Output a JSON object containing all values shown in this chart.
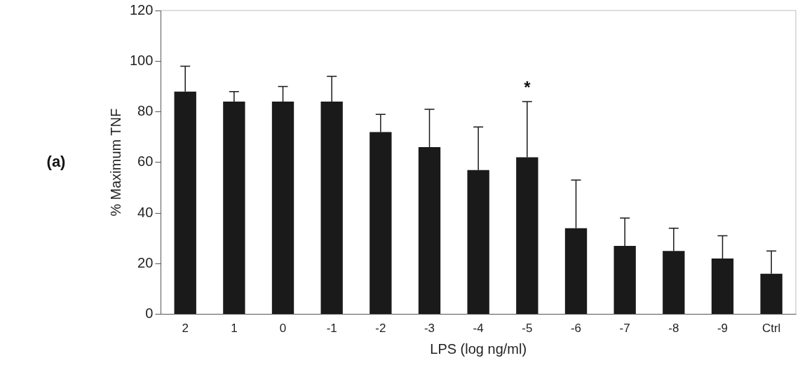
{
  "chart_data": {
    "type": "bar",
    "xlabel": "LPS (log ng/ml)",
    "ylabel": "% Maximum TNF",
    "categories": [
      "2",
      "1",
      "0",
      "-1",
      "-2",
      "-3",
      "-4",
      "-5",
      "-6",
      "-7",
      "-8",
      "-9",
      "Ctrl"
    ],
    "values": [
      88,
      84,
      84,
      84,
      72,
      66,
      57,
      62,
      34,
      27,
      25,
      22,
      16
    ],
    "errors": [
      [
        88,
        98
      ],
      [
        84,
        88
      ],
      [
        84,
        90
      ],
      [
        84,
        94
      ],
      [
        72,
        79
      ],
      [
        66,
        81
      ],
      [
        57,
        74
      ],
      [
        62,
        84
      ],
      [
        34,
        53
      ],
      [
        27,
        38
      ],
      [
        25,
        34
      ],
      [
        22,
        31
      ],
      [
        16,
        25
      ]
    ],
    "color": "#1a1a1a",
    "ylim": [
      0,
      120
    ],
    "yticks": [
      0,
      20,
      40,
      60,
      80,
      100,
      120
    ],
    "grid": false,
    "legend": false,
    "annotations": [
      "(a)",
      {
        "text": "*",
        "x": "-5",
        "y": 84
      }
    ]
  }
}
